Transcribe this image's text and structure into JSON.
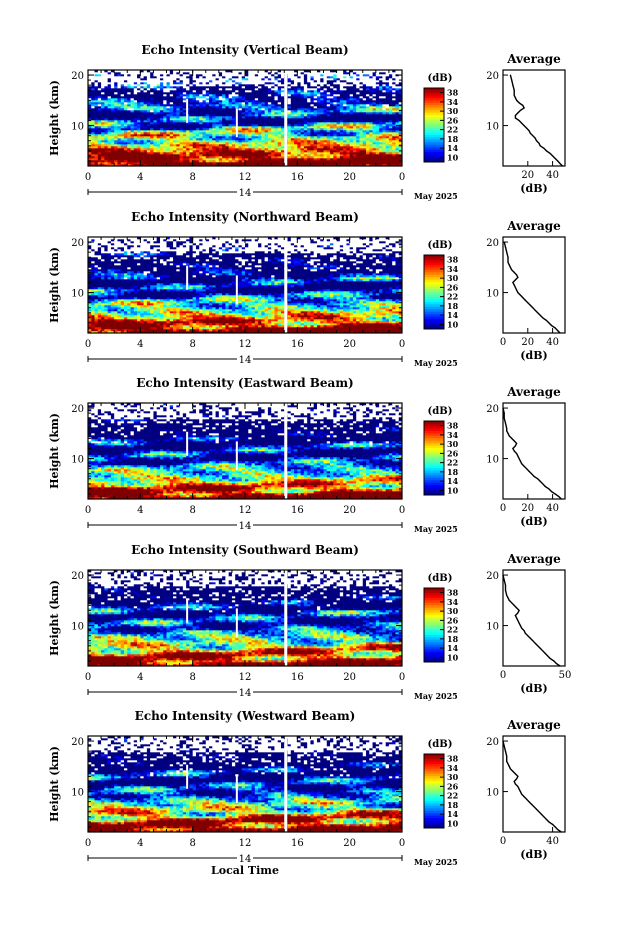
{
  "chart_data": [
    {
      "type": "heatmap",
      "title": "Echo Intensity (Vertical Beam)",
      "ylabel": "Height (km)",
      "x_ticks": [
        "0",
        "4",
        "8",
        "12",
        "16",
        "20",
        "0"
      ],
      "y_ticks": [
        "20",
        "10"
      ],
      "date_label": "14",
      "month_label": "May 2025",
      "colorbar": {
        "unit": "(dB)",
        "ticks": [
          "38",
          "34",
          "30",
          "26",
          "22",
          "18",
          "14",
          "10"
        ]
      },
      "average": {
        "title": "Average",
        "xlabel": "(dB)",
        "x_ticks": [
          "20",
          "40"
        ],
        "y_ticks": [
          "20",
          "10"
        ],
        "xlim": [
          0,
          50
        ],
        "profile": [
          [
            48,
            2
          ],
          [
            46,
            2.5
          ],
          [
            44,
            3
          ],
          [
            42,
            3.5
          ],
          [
            40,
            4
          ],
          [
            38,
            4.5
          ],
          [
            35,
            5
          ],
          [
            33,
            5.5
          ],
          [
            30,
            6
          ],
          [
            29,
            6.5
          ],
          [
            27,
            7
          ],
          [
            26,
            7.5
          ],
          [
            24,
            8
          ],
          [
            22,
            8.5
          ],
          [
            21,
            9
          ],
          [
            19,
            9.5
          ],
          [
            17,
            10
          ],
          [
            15,
            10.5
          ],
          [
            13,
            11
          ],
          [
            10,
            11.5
          ],
          [
            10,
            12
          ],
          [
            12,
            12.5
          ],
          [
            14,
            13
          ],
          [
            17,
            13.5
          ],
          [
            16,
            14
          ],
          [
            13,
            14.5
          ],
          [
            11,
            15
          ],
          [
            10,
            15.5
          ],
          [
            9,
            16
          ],
          [
            9,
            17
          ],
          [
            8,
            18
          ],
          [
            7,
            19
          ],
          [
            6,
            20
          ]
        ]
      },
      "ylim": [
        2,
        21
      ],
      "xlim": [
        0,
        24
      ],
      "vmin": 10,
      "vmax": 40
    },
    {
      "type": "heatmap",
      "title": "Echo Intensity (Northward Beam)",
      "ylabel": "Height (km)",
      "x_ticks": [
        "0",
        "4",
        "8",
        "12",
        "16",
        "20",
        "0"
      ],
      "y_ticks": [
        "20",
        "10"
      ],
      "date_label": "14",
      "month_label": "May 2025",
      "colorbar": {
        "unit": "(dB)",
        "ticks": [
          "38",
          "34",
          "30",
          "26",
          "22",
          "18",
          "14",
          "10"
        ]
      },
      "average": {
        "title": "Average",
        "xlabel": "(dB)",
        "x_ticks": [
          "0",
          "20",
          "40"
        ],
        "y_ticks": [
          "20",
          "10"
        ],
        "xlim": [
          0,
          50
        ],
        "profile": [
          [
            46,
            2
          ],
          [
            44,
            2.5
          ],
          [
            42,
            3
          ],
          [
            39,
            3.5
          ],
          [
            37,
            4
          ],
          [
            35,
            4.5
          ],
          [
            32,
            5
          ],
          [
            30,
            5.5
          ],
          [
            28,
            6
          ],
          [
            26,
            6.5
          ],
          [
            24,
            7
          ],
          [
            22,
            7.5
          ],
          [
            20,
            8
          ],
          [
            18,
            8.5
          ],
          [
            16,
            9
          ],
          [
            14,
            9.5
          ],
          [
            12,
            10
          ],
          [
            11,
            10.5
          ],
          [
            10,
            11
          ],
          [
            9,
            11.5
          ],
          [
            8,
            12
          ],
          [
            10,
            12.5
          ],
          [
            12,
            13
          ],
          [
            11,
            13.5
          ],
          [
            9,
            14
          ],
          [
            7,
            14.5
          ],
          [
            6,
            15
          ],
          [
            5,
            15.5
          ],
          [
            4,
            16
          ],
          [
            4,
            17
          ],
          [
            3,
            18
          ],
          [
            2,
            19
          ],
          [
            1,
            20
          ]
        ]
      },
      "ylim": [
        2,
        21
      ],
      "xlim": [
        0,
        24
      ],
      "vmin": 10,
      "vmax": 40
    },
    {
      "type": "heatmap",
      "title": "Echo Intensity (Eastward Beam)",
      "ylabel": "Height (km)",
      "x_ticks": [
        "0",
        "4",
        "8",
        "12",
        "16",
        "20",
        "0"
      ],
      "y_ticks": [
        "20",
        "10"
      ],
      "date_label": "14",
      "month_label": "May 2025",
      "colorbar": {
        "unit": "(dB)",
        "ticks": [
          "38",
          "34",
          "30",
          "26",
          "22",
          "18",
          "14",
          "10"
        ]
      },
      "average": {
        "title": "Average",
        "xlabel": "(dB)",
        "x_ticks": [
          "0",
          "20",
          "40"
        ],
        "y_ticks": [
          "20",
          "10"
        ],
        "xlim": [
          0,
          50
        ],
        "profile": [
          [
            47,
            2
          ],
          [
            45,
            2.5
          ],
          [
            42,
            3
          ],
          [
            39,
            3.5
          ],
          [
            37,
            4
          ],
          [
            34,
            4.5
          ],
          [
            32,
            5
          ],
          [
            30,
            5.5
          ],
          [
            28,
            6
          ],
          [
            25,
            6.5
          ],
          [
            23,
            7
          ],
          [
            21,
            7.5
          ],
          [
            19,
            8
          ],
          [
            17,
            8.5
          ],
          [
            15,
            9
          ],
          [
            14,
            9.5
          ],
          [
            13,
            10
          ],
          [
            12,
            10.5
          ],
          [
            11,
            11
          ],
          [
            9,
            11.5
          ],
          [
            8,
            12
          ],
          [
            10,
            12.5
          ],
          [
            11,
            13
          ],
          [
            9,
            13.5
          ],
          [
            7,
            14
          ],
          [
            5,
            14.5
          ],
          [
            4,
            15
          ],
          [
            3,
            15.5
          ],
          [
            3,
            16
          ],
          [
            2,
            17
          ],
          [
            1,
            18
          ],
          [
            1,
            19
          ],
          [
            0,
            20
          ]
        ]
      },
      "ylim": [
        2,
        21
      ],
      "xlim": [
        0,
        24
      ],
      "vmin": 10,
      "vmax": 40
    },
    {
      "type": "heatmap",
      "title": "Echo Intensity (Southward Beam)",
      "ylabel": "Height (km)",
      "x_ticks": [
        "0",
        "4",
        "8",
        "12",
        "16",
        "20",
        "0"
      ],
      "y_ticks": [
        "20",
        "10"
      ],
      "date_label": "14",
      "month_label": "May 2025",
      "colorbar": {
        "unit": "(dB)",
        "ticks": [
          "38",
          "34",
          "30",
          "26",
          "22",
          "18",
          "14",
          "10"
        ]
      },
      "average": {
        "title": "Average",
        "xlabel": "(dB)",
        "x_ticks": [
          "0",
          "50"
        ],
        "y_ticks": [
          "20",
          "10"
        ],
        "xlim": [
          0,
          50
        ],
        "profile": [
          [
            46,
            2
          ],
          [
            43,
            2.5
          ],
          [
            41,
            3
          ],
          [
            38,
            3.5
          ],
          [
            36,
            4
          ],
          [
            34,
            4.5
          ],
          [
            32,
            5
          ],
          [
            30,
            5.5
          ],
          [
            28,
            6
          ],
          [
            26,
            6.5
          ],
          [
            24,
            7
          ],
          [
            22,
            7.5
          ],
          [
            20,
            8
          ],
          [
            18,
            8.5
          ],
          [
            17,
            9
          ],
          [
            15,
            9.5
          ],
          [
            14,
            10
          ],
          [
            13,
            10.5
          ],
          [
            12,
            11
          ],
          [
            11,
            11.5
          ],
          [
            10,
            12
          ],
          [
            12,
            12.5
          ],
          [
            13,
            13
          ],
          [
            11,
            13.5
          ],
          [
            9,
            14
          ],
          [
            7,
            14.5
          ],
          [
            5,
            15
          ],
          [
            4,
            15.5
          ],
          [
            3,
            16
          ],
          [
            2,
            17
          ],
          [
            2,
            18
          ],
          [
            1,
            19
          ],
          [
            0,
            20
          ]
        ]
      },
      "ylim": [
        2,
        21
      ],
      "xlim": [
        0,
        24
      ],
      "vmin": 10,
      "vmax": 40
    },
    {
      "type": "heatmap",
      "title": "Echo Intensity (Westward Beam)",
      "ylabel": "Height (km)",
      "x_ticks": [
        "0",
        "4",
        "8",
        "12",
        "16",
        "20",
        "0"
      ],
      "y_ticks": [
        "20",
        "10"
      ],
      "date_label": "14",
      "month_label": "May 2025",
      "colorbar": {
        "unit": "(dB)",
        "ticks": [
          "38",
          "34",
          "30",
          "26",
          "22",
          "18",
          "14",
          "10"
        ]
      },
      "average": {
        "title": "Average",
        "xlabel": "(dB)",
        "x_ticks": [
          "0",
          "40"
        ],
        "y_ticks": [
          "20",
          "10"
        ],
        "xlim": [
          0,
          50
        ],
        "profile": [
          [
            47,
            2
          ],
          [
            44,
            2.5
          ],
          [
            42,
            3
          ],
          [
            40,
            3.5
          ],
          [
            37,
            4
          ],
          [
            35,
            4.5
          ],
          [
            33,
            5
          ],
          [
            31,
            5.5
          ],
          [
            29,
            6
          ],
          [
            27,
            6.5
          ],
          [
            25,
            7
          ],
          [
            23,
            7.5
          ],
          [
            21,
            8
          ],
          [
            19,
            8.5
          ],
          [
            17,
            9
          ],
          [
            15,
            9.5
          ],
          [
            14,
            10
          ],
          [
            13,
            10.5
          ],
          [
            12,
            11
          ],
          [
            10,
            11.5
          ],
          [
            9,
            12
          ],
          [
            11,
            12.5
          ],
          [
            12,
            13
          ],
          [
            10,
            13.5
          ],
          [
            8,
            14
          ],
          [
            6,
            14.5
          ],
          [
            5,
            15
          ],
          [
            4,
            15.5
          ],
          [
            3,
            16
          ],
          [
            3,
            17
          ],
          [
            2,
            18
          ],
          [
            1,
            19
          ],
          [
            0,
            20
          ]
        ]
      },
      "ylim": [
        2,
        21
      ],
      "xlim": [
        0,
        24
      ],
      "vmin": 10,
      "vmax": 40
    }
  ],
  "footer": {
    "xlabel": "Local Time"
  },
  "colors": {
    "gap": "#ffffff",
    "low": "#24308c",
    "high": "#ff1a0a"
  }
}
